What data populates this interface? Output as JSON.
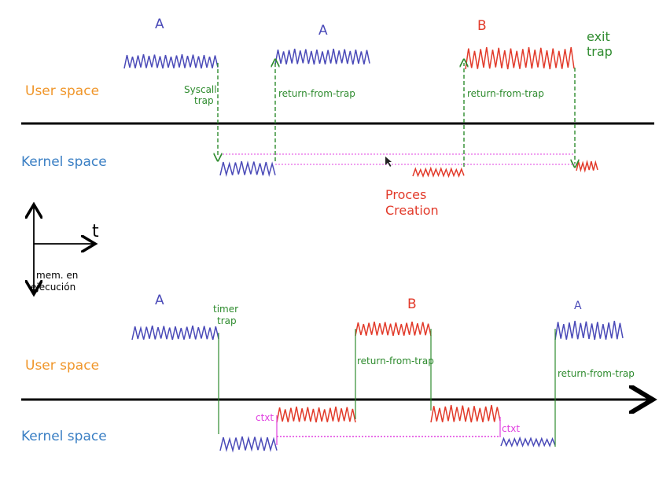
{
  "colors": {
    "user_label": "#f0962a",
    "kernel_label": "#3a7fc4",
    "process_a": "#4a4ab8",
    "process_b": "#e23a2a",
    "trap_green": "#2e8b2e",
    "context_magenta": "#e040e0",
    "axis": "#000000"
  },
  "top": {
    "user_space": "User space",
    "kernel_space": "Kernel space",
    "label_a1": "A",
    "label_a2": "A",
    "label_b": "B",
    "syscall_line1": "Syscall",
    "syscall_line2": "trap",
    "return_from_trap_1": "return-from-trap",
    "return_from_trap_2": "return-from-trap",
    "exit_line1": "exit",
    "exit_line2": "trap",
    "proces_line1": "Proces",
    "proces_line2": "Creation"
  },
  "axes": {
    "t_label": "t",
    "mem_line1": "mem. en",
    "mem_line2": "ejecución"
  },
  "bottom": {
    "user_space": "User space",
    "kernel_space": "Kernel space",
    "label_a1": "A",
    "label_b": "B",
    "label_a2": "A",
    "timer_line1": "timer",
    "timer_line2": "trap",
    "return_from_trap_1": "return-from-trap",
    "return_from_trap_2": "return-from-trap",
    "ctxt_1": "ctxt",
    "ctxt_2": "ctxt"
  }
}
